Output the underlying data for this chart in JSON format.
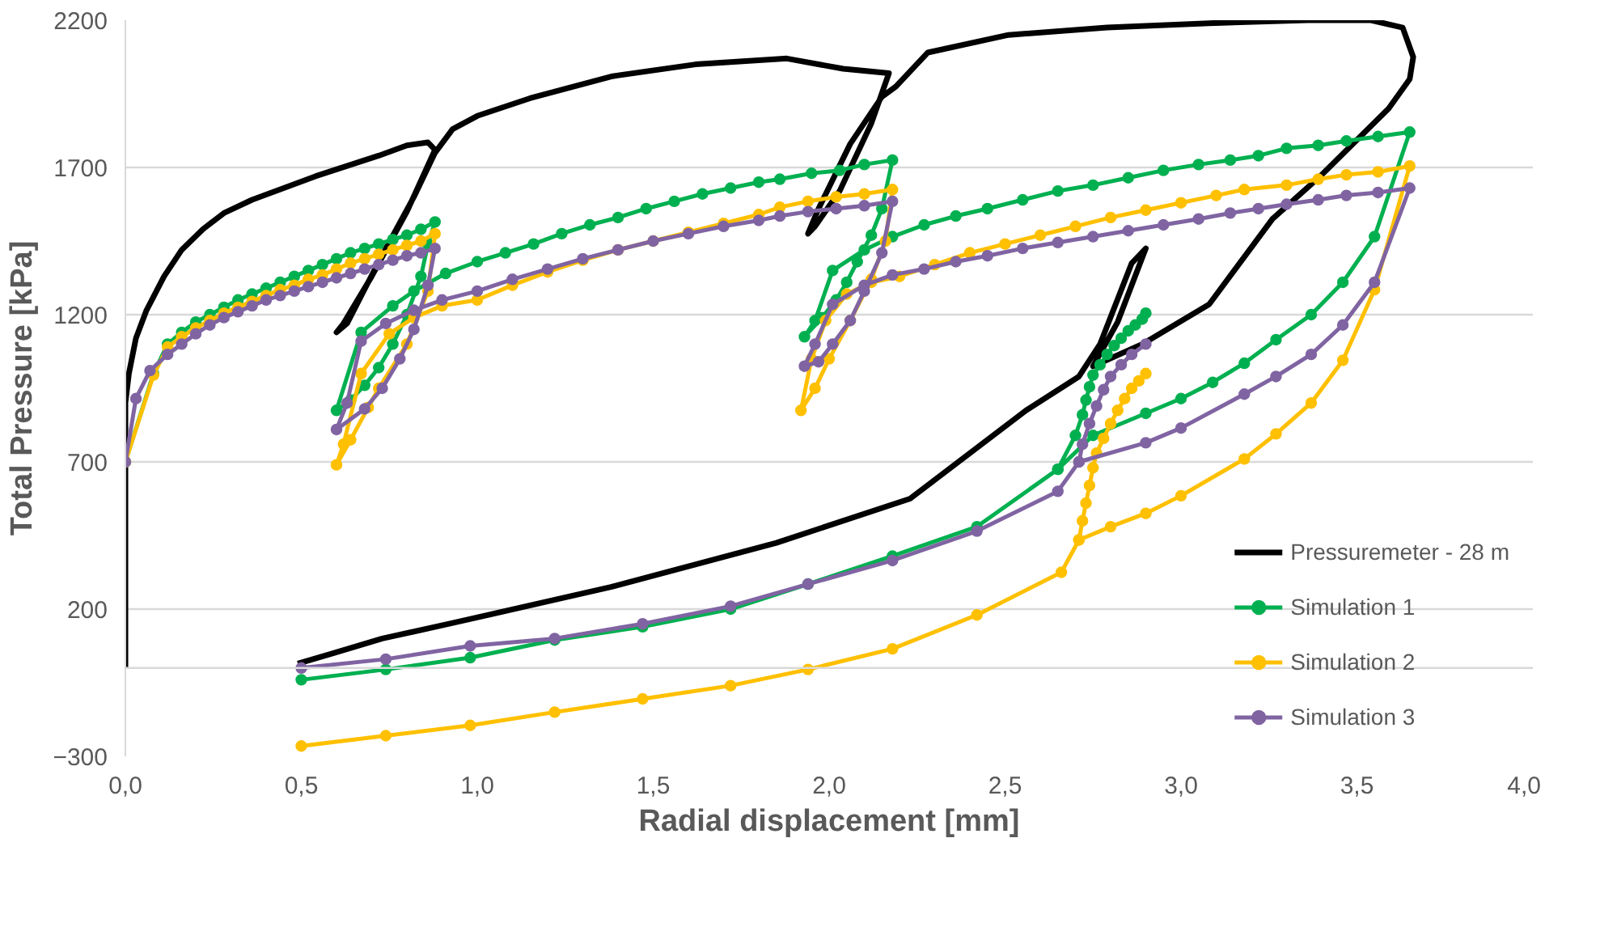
{
  "chart_data": {
    "type": "line",
    "xlabel": "Radial displacement [mm]",
    "ylabel": "Total Pressure [kPa]",
    "xlim": [
      0,
      4
    ],
    "ylim": [
      -300,
      2200
    ],
    "xticks": [
      {
        "value": 0,
        "label": "0,0"
      },
      {
        "value": 0.5,
        "label": "0,5"
      },
      {
        "value": 1,
        "label": "1,0"
      },
      {
        "value": 1.5,
        "label": "1,5"
      },
      {
        "value": 2,
        "label": "2,0"
      },
      {
        "value": 2.5,
        "label": "2,5"
      },
      {
        "value": 3,
        "label": "3,0"
      },
      {
        "value": 3.5,
        "label": "3,5"
      },
      {
        "value": 4,
        "label": "4,0"
      }
    ],
    "yticks": [
      -300,
      200,
      700,
      1200,
      1700,
      2200
    ],
    "grid": "y",
    "legend": "bottom right",
    "marker": "circle",
    "series": [
      {
        "name": "Pressuremeter - 28 m",
        "color": "#000000",
        "marker": "none",
        "x": [
          0,
          0,
          0.0,
          0.01,
          0.03,
          0.06,
          0.11,
          0.16,
          0.22,
          0.28,
          0.36,
          0.45,
          0.54,
          0.63,
          0.72,
          0.8,
          0.86,
          0.88,
          0.8,
          0.7,
          0.62,
          0.6,
          0.63,
          0.72,
          0.82,
          0.88,
          0.93,
          1.0,
          1.15,
          1.385,
          1.62,
          1.88,
          2.04,
          2.17,
          2.12,
          2.03,
          1.96,
          1.94,
          1.97,
          2.06,
          2.15,
          2.19,
          2.28,
          2.51,
          2.79,
          3.08,
          3.36,
          3.54,
          3.63,
          3.66,
          3.65,
          3.59,
          3.4,
          3.26,
          3.08,
          2.89,
          2.75,
          2.82,
          2.9,
          2.86,
          2.77,
          2.71,
          2.56,
          2.23,
          1.85,
          1.38,
          0.92,
          0.73,
          0.59,
          0.49
        ],
        "values": [
          0,
          550,
          900,
          1000,
          1120,
          1215,
          1330,
          1420,
          1490,
          1545,
          1590,
          1630,
          1670,
          1705,
          1740,
          1775,
          1785,
          1760,
          1550,
          1330,
          1170,
          1140,
          1170,
          1380,
          1600,
          1750,
          1830,
          1875,
          1935,
          2010,
          2050,
          2070,
          2035,
          2020,
          1850,
          1620,
          1500,
          1475,
          1560,
          1780,
          1940,
          1975,
          2090,
          2150,
          2175,
          2190,
          2200,
          2200,
          2175,
          2075,
          2000,
          1900,
          1675,
          1525,
          1235,
          1100,
          1025,
          1175,
          1425,
          1375,
          1100,
          990,
          875,
          575,
          425,
          275,
          150,
          100,
          50,
          15
        ]
      },
      {
        "name": "Simulation 1",
        "color": "#00b050",
        "x": [
          0,
          0.08,
          0.12,
          0.16,
          0.2,
          0.24,
          0.28,
          0.32,
          0.36,
          0.4,
          0.44,
          0.48,
          0.52,
          0.56,
          0.6,
          0.64,
          0.68,
          0.72,
          0.76,
          0.8,
          0.84,
          0.88,
          0.86,
          0.84,
          0.8,
          0.76,
          0.72,
          0.68,
          0.64,
          0.6,
          0.67,
          0.76,
          0.82,
          0.91,
          1.0,
          1.08,
          1.16,
          1.24,
          1.32,
          1.4,
          1.48,
          1.56,
          1.64,
          1.72,
          1.8,
          1.86,
          1.95,
          2.03,
          2.1,
          2.18,
          2.15,
          2.12,
          2.08,
          2.05,
          2.02,
          1.98,
          1.93,
          1.96,
          2.01,
          2.1,
          2.18,
          2.27,
          2.36,
          2.45,
          2.55,
          2.65,
          2.75,
          2.85,
          2.95,
          3.05,
          3.14,
          3.22,
          3.3,
          3.39,
          3.47,
          3.56,
          3.65,
          3.55,
          3.46,
          3.37,
          3.27,
          3.18,
          3.09,
          3.0,
          2.9,
          2.75,
          2.65,
          2.42,
          2.18,
          1.94,
          1.72,
          1.47,
          1.22,
          0.98,
          0.74,
          0.5,
          null,
          2.65,
          2.7,
          2.72,
          2.73,
          2.74,
          2.75,
          2.77,
          2.79,
          2.81,
          2.83,
          2.85,
          2.87,
          2.89,
          2.9
        ],
        "values": [
          700,
          1000,
          1100,
          1140,
          1175,
          1200,
          1225,
          1250,
          1270,
          1290,
          1310,
          1330,
          1350,
          1370,
          1390,
          1410,
          1425,
          1440,
          1455,
          1470,
          1490,
          1515,
          1440,
          1330,
          1200,
          1100,
          1020,
          960,
          910,
          875,
          1140,
          1230,
          1280,
          1340,
          1380,
          1410,
          1440,
          1475,
          1505,
          1530,
          1560,
          1585,
          1610,
          1630,
          1650,
          1660,
          1680,
          1690,
          1710,
          1725,
          1560,
          1470,
          1380,
          1310,
          1250,
          1190,
          1125,
          1180,
          1350,
          1420,
          1465,
          1505,
          1535,
          1560,
          1590,
          1620,
          1640,
          1665,
          1690,
          1710,
          1725,
          1740,
          1765,
          1775,
          1790,
          1805,
          1820,
          1465,
          1310,
          1200,
          1115,
          1035,
          970,
          915,
          865,
          790,
          675,
          480,
          380,
          285,
          200,
          140,
          95,
          35,
          -5,
          -40,
          null,
          675,
          790,
          860,
          910,
          955,
          995,
          1030,
          1065,
          1095,
          1120,
          1145,
          1165,
          1185,
          1205
        ]
      },
      {
        "name": "Simulation 2",
        "color": "#ffc000",
        "x": [
          0,
          0.08,
          0.12,
          0.16,
          0.2,
          0.24,
          0.28,
          0.32,
          0.36,
          0.4,
          0.44,
          0.48,
          0.52,
          0.56,
          0.6,
          0.64,
          0.68,
          0.72,
          0.76,
          0.8,
          0.84,
          0.88,
          0.86,
          0.8,
          0.72,
          0.69,
          0.64,
          0.6,
          0.62,
          0.67,
          0.75,
          0.82,
          0.9,
          1.0,
          1.1,
          1.2,
          1.3,
          1.4,
          1.5,
          1.6,
          1.7,
          1.8,
          1.86,
          1.94,
          2.02,
          2.1,
          2.18,
          2.16,
          2.12,
          2.06,
          2.0,
          1.96,
          1.92,
          1.95,
          1.99,
          2.05,
          2.12,
          2.2,
          2.3,
          2.4,
          2.5,
          2.6,
          2.7,
          2.8,
          2.9,
          3.0,
          3.1,
          3.18,
          3.3,
          3.39,
          3.47,
          3.56,
          3.65,
          3.55,
          3.46,
          3.37,
          3.27,
          3.18,
          3.0,
          2.9,
          2.8,
          2.71,
          2.66,
          2.42,
          2.18,
          1.94,
          1.72,
          1.47,
          1.22,
          0.98,
          0.74,
          0.5,
          null,
          2.71,
          2.72,
          2.73,
          2.74,
          2.75,
          2.76,
          2.78,
          2.8,
          2.82,
          2.84,
          2.86,
          2.88,
          2.9
        ],
        "values": [
          700,
          995,
          1090,
          1125,
          1155,
          1180,
          1205,
          1225,
          1245,
          1265,
          1285,
          1300,
          1320,
          1335,
          1355,
          1375,
          1390,
          1405,
          1420,
          1435,
          1450,
          1475,
          1280,
          1100,
          950,
          885,
          775,
          690,
          760,
          1000,
          1135,
          1190,
          1230,
          1250,
          1300,
          1345,
          1385,
          1420,
          1450,
          1480,
          1510,
          1540,
          1565,
          1585,
          1600,
          1610,
          1625,
          1450,
          1320,
          1180,
          1050,
          950,
          875,
          1050,
          1180,
          1270,
          1310,
          1330,
          1370,
          1410,
          1440,
          1470,
          1500,
          1530,
          1555,
          1580,
          1605,
          1625,
          1640,
          1660,
          1675,
          1685,
          1705,
          1285,
          1045,
          900,
          795,
          710,
          585,
          525,
          480,
          435,
          325,
          180,
          65,
          -5,
          -60,
          -105,
          -150,
          -195,
          -230,
          -265,
          null,
          435,
          500,
          560,
          620,
          680,
          730,
          780,
          830,
          875,
          915,
          950,
          975,
          1000
        ]
      },
      {
        "name": "Simulation 3",
        "color": "#8064a2",
        "x": [
          0,
          0.03,
          0.07,
          0.12,
          0.16,
          0.2,
          0.24,
          0.28,
          0.32,
          0.36,
          0.4,
          0.44,
          0.48,
          0.52,
          0.56,
          0.6,
          0.64,
          0.68,
          0.72,
          0.76,
          0.8,
          0.84,
          0.88,
          0.86,
          0.82,
          0.78,
          0.73,
          0.68,
          0.6,
          0.63,
          0.67,
          0.74,
          0.82,
          0.9,
          1.0,
          1.1,
          1.2,
          1.3,
          1.4,
          1.5,
          1.6,
          1.7,
          1.8,
          1.86,
          1.94,
          2.02,
          2.1,
          2.18,
          2.15,
          2.1,
          2.06,
          2.01,
          1.97,
          1.93,
          1.96,
          2.01,
          2.1,
          2.18,
          2.27,
          2.36,
          2.45,
          2.55,
          2.65,
          2.75,
          2.85,
          2.95,
          3.05,
          3.14,
          3.22,
          3.3,
          3.39,
          3.47,
          3.56,
          3.65,
          3.55,
          3.46,
          3.37,
          3.27,
          3.18,
          3.0,
          2.9,
          2.71,
          2.65,
          2.42,
          2.18,
          1.94,
          1.72,
          1.47,
          1.22,
          0.98,
          0.74,
          0.5,
          null,
          2.71,
          2.72,
          2.74,
          2.76,
          2.78,
          2.8,
          2.83,
          2.86,
          2.9
        ],
        "values": [
          700,
          915,
          1010,
          1065,
          1100,
          1135,
          1165,
          1190,
          1210,
          1230,
          1250,
          1265,
          1280,
          1295,
          1310,
          1325,
          1340,
          1355,
          1370,
          1385,
          1400,
          1410,
          1425,
          1300,
          1150,
          1050,
          950,
          880,
          810,
          900,
          1110,
          1170,
          1215,
          1250,
          1280,
          1320,
          1355,
          1390,
          1420,
          1450,
          1475,
          1500,
          1520,
          1535,
          1550,
          1560,
          1570,
          1585,
          1410,
          1280,
          1180,
          1100,
          1040,
          1025,
          1100,
          1235,
          1300,
          1335,
          1355,
          1380,
          1400,
          1425,
          1445,
          1465,
          1485,
          1505,
          1525,
          1545,
          1560,
          1575,
          1590,
          1605,
          1615,
          1630,
          1310,
          1165,
          1065,
          990,
          930,
          815,
          765,
          700,
          600,
          465,
          365,
          285,
          210,
          150,
          100,
          75,
          30,
          0,
          null,
          700,
          760,
          830,
          890,
          945,
          990,
          1030,
          1065,
          1100
        ]
      }
    ]
  }
}
